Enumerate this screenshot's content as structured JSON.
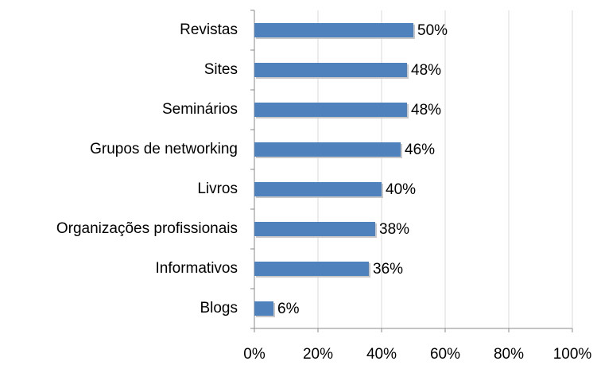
{
  "chart_data": {
    "type": "bar",
    "orientation": "horizontal",
    "categories": [
      "Revistas",
      "Sites",
      "Seminários",
      "Grupos de networking",
      "Livros",
      "Organizações profissionais",
      "Informativos",
      "Blogs"
    ],
    "values": [
      50,
      48,
      48,
      46,
      40,
      38,
      36,
      6
    ],
    "value_labels": [
      "50%",
      "48%",
      "48%",
      "46%",
      "40%",
      "38%",
      "36%",
      "6%"
    ],
    "color": "#4f81bd",
    "xlim": [
      0,
      100
    ],
    "xticks": [
      {
        "value": 0,
        "label": "0%"
      },
      {
        "value": 20,
        "label": "20%"
      },
      {
        "value": 40,
        "label": "40%"
      },
      {
        "value": 60,
        "label": "60%"
      },
      {
        "value": 80,
        "label": "80%"
      },
      {
        "value": 100,
        "label": "100%"
      }
    ],
    "grid": true
  }
}
